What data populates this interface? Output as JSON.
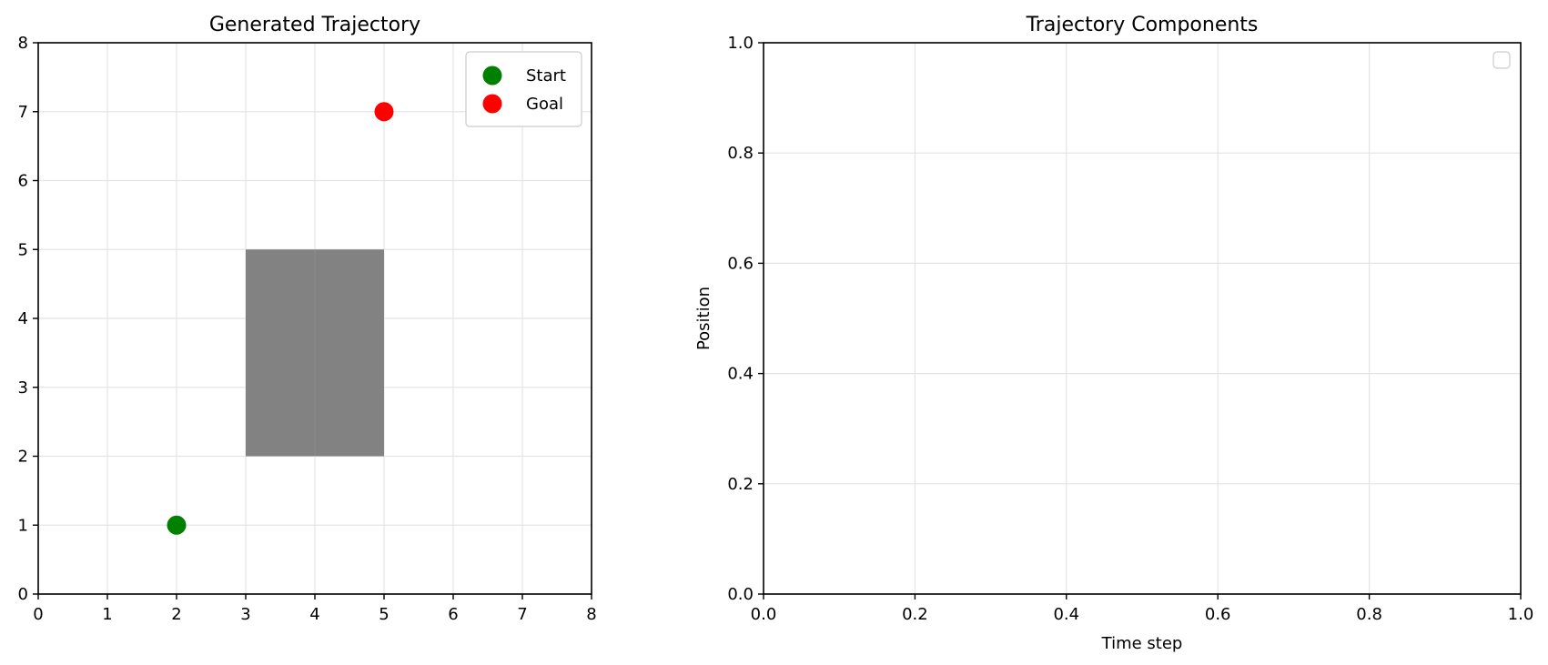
{
  "chart_data": [
    {
      "type": "scatter",
      "title": "Generated Trajectory",
      "xlabel": "",
      "ylabel": "",
      "xlim": [
        0,
        8
      ],
      "ylim": [
        0,
        8
      ],
      "xticks": [
        "0",
        "1",
        "2",
        "3",
        "4",
        "5",
        "6",
        "7",
        "8"
      ],
      "yticks": [
        "0",
        "1",
        "2",
        "3",
        "4",
        "5",
        "6",
        "7",
        "8"
      ],
      "grid": true,
      "legend_position": "top-right",
      "obstacles": [
        {
          "x": [
            3,
            5
          ],
          "y": [
            2,
            5
          ],
          "color": "#808080"
        }
      ],
      "series": [
        {
          "name": "Start",
          "color": "#008000",
          "points": [
            {
              "x": 2,
              "y": 1
            }
          ]
        },
        {
          "name": "Goal",
          "color": "#ff0000",
          "points": [
            {
              "x": 5,
              "y": 7
            }
          ]
        }
      ]
    },
    {
      "type": "line",
      "title": "Trajectory Components",
      "xlabel": "Time step",
      "ylabel": "Position",
      "xlim": [
        0,
        1
      ],
      "ylim": [
        0,
        1
      ],
      "xticks": [
        "0.0",
        "0.2",
        "0.4",
        "0.6",
        "0.8",
        "1.0"
      ],
      "yticks": [
        "0.0",
        "0.2",
        "0.4",
        "0.6",
        "0.8",
        "1.0"
      ],
      "grid": true,
      "legend_position": "top-right",
      "series": []
    }
  ]
}
